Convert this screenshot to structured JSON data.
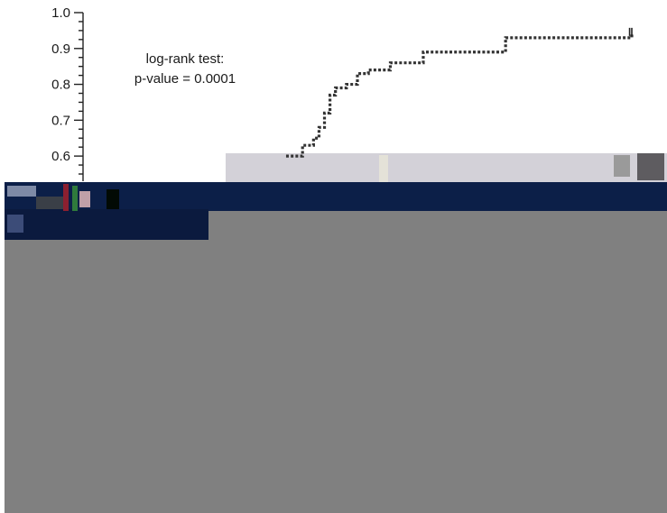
{
  "chart_data": {
    "type": "line",
    "title": "",
    "xlabel": "",
    "ylabel": "",
    "annotation": [
      "log-rank test:",
      "p-value = 0.0001"
    ],
    "ylim": [
      0.55,
      1.0
    ],
    "y_ticks": [
      "1.0",
      "0.9",
      "0.8",
      "0.7",
      "0.6"
    ],
    "y_tick_values": [
      1.0,
      0.9,
      0.8,
      0.7,
      0.6
    ],
    "xlim": [
      0,
      100
    ],
    "grid": false,
    "series": [
      {
        "x": [
          37,
          40,
          42,
          43,
          44,
          45,
          46,
          48,
          50,
          52,
          56,
          62,
          76,
          77,
          100
        ],
        "y": [
          0.6,
          0.63,
          0.65,
          0.68,
          0.72,
          0.77,
          0.79,
          0.8,
          0.83,
          0.84,
          0.86,
          0.89,
          0.89,
          0.93,
          0.94
        ],
        "censored_x": [
          99.6,
          100
        ]
      }
    ],
    "colors": {
      "line": "#333333",
      "axis": "#222222"
    }
  },
  "overlay": {
    "light_band_color": "#d3d1d8",
    "navy_color": "#0c1f48",
    "grey_color": "#808080"
  }
}
